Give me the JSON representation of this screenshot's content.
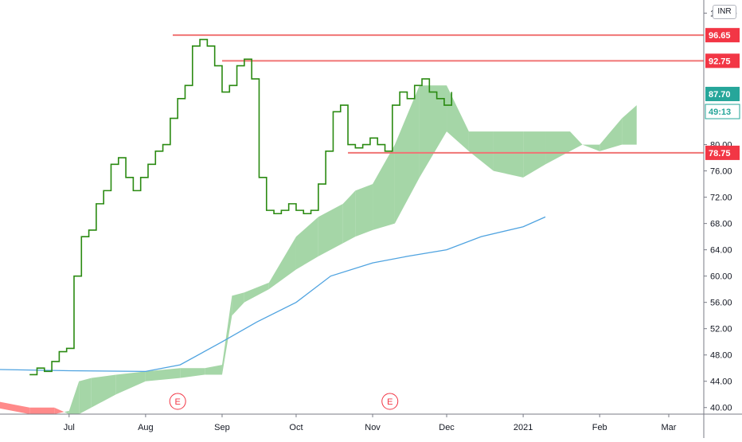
{
  "currency": "INR",
  "colors": {
    "price_line": "#2a8a11",
    "cloud_bull": "#a5d6a7",
    "cloud_bear": "#ff8a8a",
    "level_line": "#f07474",
    "ma_line": "#4fa3e0",
    "earnings": "#f23645",
    "badge_green": "#26a69a",
    "badge_red": "#f23645"
  },
  "earnings_label": "E",
  "chart_data": {
    "type": "line",
    "x_ticks": [
      "Jul",
      "Aug",
      "Sep",
      "Oct",
      "Nov",
      "Dec",
      "2021",
      "Feb",
      "Mar"
    ],
    "y_ticks": [
      "100.00",
      "80.00",
      "76.00",
      "72.00",
      "68.00",
      "64.00",
      "60.00",
      "56.00",
      "52.00",
      "48.00",
      "44.00",
      "40.00"
    ],
    "ylim": [
      39,
      102
    ],
    "levels": [
      {
        "value": 96.65,
        "label": "96.65",
        "from": "2020-08-12"
      },
      {
        "value": 92.75,
        "label": "92.75",
        "from": "2020-09-01"
      },
      {
        "value": 78.75,
        "label": "78.75",
        "from": "2020-10-22"
      }
    ],
    "last_price": {
      "value": 87.7,
      "label": "87.70",
      "countdown": "49:13"
    },
    "earnings_dates": [
      "2020-08-14",
      "2020-11-08"
    ],
    "price": {
      "name": "",
      "x": [
        "2020-06-15",
        "2020-06-18",
        "2020-06-21",
        "2020-06-24",
        "2020-06-27",
        "2020-06-30",
        "2020-07-03",
        "2020-07-06",
        "2020-07-09",
        "2020-07-12",
        "2020-07-15",
        "2020-07-18",
        "2020-07-21",
        "2020-07-24",
        "2020-07-27",
        "2020-07-30",
        "2020-08-02",
        "2020-08-05",
        "2020-08-08",
        "2020-08-11",
        "2020-08-14",
        "2020-08-17",
        "2020-08-20",
        "2020-08-23",
        "2020-08-26",
        "2020-08-29",
        "2020-09-01",
        "2020-09-04",
        "2020-09-07",
        "2020-09-10",
        "2020-09-13",
        "2020-09-16",
        "2020-09-19",
        "2020-09-22",
        "2020-09-25",
        "2020-09-28",
        "2020-10-01",
        "2020-10-04",
        "2020-10-07",
        "2020-10-10",
        "2020-10-13",
        "2020-10-16",
        "2020-10-19",
        "2020-10-22",
        "2020-10-25",
        "2020-10-28",
        "2020-10-31",
        "2020-11-03",
        "2020-11-06",
        "2020-11-09",
        "2020-11-12",
        "2020-11-15",
        "2020-11-18",
        "2020-11-21",
        "2020-11-24",
        "2020-11-27",
        "2020-11-30",
        "2020-12-03"
      ],
      "y": [
        45,
        46,
        45.5,
        47,
        48.5,
        49,
        60,
        66,
        67,
        71,
        73,
        77,
        78,
        75,
        73,
        75,
        77,
        79,
        80,
        84,
        87,
        89,
        95,
        96,
        95,
        92,
        88,
        89,
        92,
        93,
        90,
        75,
        70,
        69.5,
        70,
        71,
        70,
        69.5,
        70,
        74,
        79,
        85,
        86,
        80,
        79.5,
        80,
        81,
        80,
        79,
        86,
        88,
        87,
        89,
        90,
        88,
        87,
        86,
        88
      ]
    },
    "moving_average": {
      "name": "",
      "x": [
        "2020-06-01",
        "2020-07-01",
        "2020-08-01",
        "2020-08-15",
        "2020-09-01",
        "2020-09-15",
        "2020-10-01",
        "2020-10-15",
        "2020-11-01",
        "2020-11-15",
        "2020-12-01",
        "2020-12-15",
        "2021-01-01",
        "2021-01-10"
      ],
      "y": [
        45.8,
        45.6,
        45.5,
        46.5,
        50,
        53,
        56,
        60,
        62,
        63,
        64,
        66,
        67.5,
        69
      ]
    },
    "cloud": {
      "x": [
        "2020-06-01",
        "2020-06-15",
        "2020-06-25",
        "2020-07-01",
        "2020-07-05",
        "2020-07-10",
        "2020-07-20",
        "2020-08-01",
        "2020-08-15",
        "2020-08-25",
        "2020-09-01",
        "2020-09-05",
        "2020-09-10",
        "2020-09-20",
        "2020-10-01",
        "2020-10-10",
        "2020-10-20",
        "2020-10-25",
        "2020-11-01",
        "2020-11-10",
        "2020-11-20",
        "2020-12-01",
        "2020-12-10",
        "2020-12-20",
        "2021-01-01",
        "2021-01-10",
        "2021-01-20",
        "2021-01-25",
        "2021-02-01",
        "2021-02-10",
        "2021-02-16"
      ],
      "span_a": [
        40,
        39,
        39,
        39.5,
        44,
        44.5,
        45,
        45.5,
        46,
        46,
        46.5,
        57,
        57.5,
        59,
        66,
        69,
        71,
        73,
        74,
        80,
        89,
        89,
        82,
        82,
        82,
        82,
        82,
        80,
        80,
        84,
        86
      ],
      "span_b": [
        41,
        40,
        40,
        39,
        39,
        40,
        42,
        44,
        44.5,
        45,
        45,
        54,
        56,
        58,
        61,
        63,
        65,
        66,
        67,
        68,
        75,
        82,
        79,
        76,
        75,
        77,
        79,
        80,
        79,
        80,
        80
      ]
    }
  }
}
